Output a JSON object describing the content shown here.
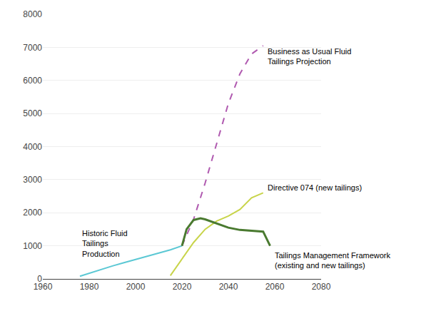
{
  "chart_data": {
    "type": "line",
    "xlim": [
      1960,
      2080
    ],
    "ylim": [
      0,
      8000
    ],
    "xticks": [
      1960,
      1980,
      2000,
      2020,
      2040,
      2060,
      2080
    ],
    "yticks": [
      0,
      1000,
      2000,
      3000,
      4000,
      5000,
      6000,
      7000,
      8000
    ],
    "grid": true,
    "series": [
      {
        "color": "#5bc8d4",
        "line_style": "solid",
        "x": [
          1976,
          1980,
          1985,
          1990,
          1995,
          2000,
          2005,
          2010,
          2015,
          2020
        ],
        "values": [
          80,
          170,
          280,
          390,
          490,
          590,
          690,
          780,
          880,
          1000
        ]
      },
      {
        "color": "#b05ab0",
        "line_style": "dashed",
        "x": [
          2020,
          2025,
          2030,
          2035,
          2040,
          2045,
          2050,
          2055
        ],
        "values": [
          1000,
          1800,
          2900,
          4100,
          5300,
          6200,
          6800,
          7050
        ]
      },
      {
        "color": "#c8d44a",
        "line_style": "solid",
        "x": [
          2015,
          2020,
          2025,
          2030,
          2035,
          2040,
          2045,
          2050,
          2055
        ],
        "values": [
          100,
          600,
          1100,
          1500,
          1750,
          1900,
          2100,
          2450,
          2600
        ]
      },
      {
        "color": "#4a7a30",
        "line_style": "solid",
        "x": [
          2020,
          2022,
          2025,
          2028,
          2030,
          2033,
          2035,
          2040,
          2045,
          2050,
          2055,
          2058
        ],
        "values": [
          1000,
          1500,
          1780,
          1830,
          1800,
          1720,
          1680,
          1550,
          1480,
          1450,
          1430,
          1000
        ]
      }
    ],
    "annotations": [
      {
        "text": "Historic Fluid\nTailings\nProduction",
        "x": 1975,
        "y": 1550
      },
      {
        "text": "Business as Usual Fluid\nTailings Projection",
        "x": 2055,
        "y": 7050
      },
      {
        "text": "Directive 074 (new tailings)",
        "x": 2055,
        "y": 2750
      },
      {
        "text": "Tailings Management Framework\n(existing and new tailings)",
        "x": 2058,
        "y": 880
      }
    ]
  }
}
